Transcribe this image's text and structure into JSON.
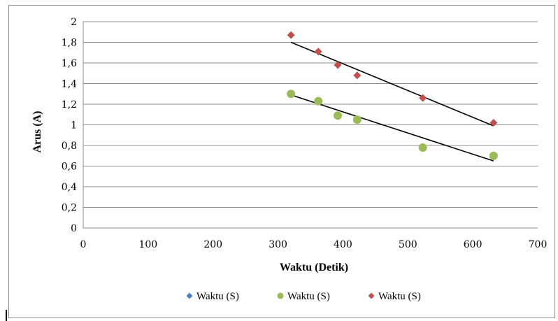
{
  "chart_data": {
    "type": "scatter",
    "title": "",
    "xlabel": "Waktu (Detik)",
    "ylabel": "Arus (A)",
    "xlim": [
      0,
      700
    ],
    "ylim": [
      0,
      2
    ],
    "x_ticks": [
      0,
      100,
      200,
      300,
      400,
      500,
      600,
      700
    ],
    "y_ticks": [
      0,
      0.2,
      0.4,
      0.6,
      0.8,
      1,
      1.2,
      1.4,
      1.6,
      1.8,
      2
    ],
    "y_tick_labels": [
      "0",
      "0,2",
      "0,4",
      "0,6",
      "0,8",
      "1",
      "1,2",
      "1,4",
      "1,6",
      "1,8",
      "2"
    ],
    "grid": "horizontal",
    "legend_position": "bottom",
    "series": [
      {
        "name": "Waktu (S)",
        "color": "#4f81bd",
        "marker": "diamond",
        "x": [],
        "y": []
      },
      {
        "name": "Waktu (S)",
        "color": "#9bbb59",
        "marker": "circle",
        "x": [
          320,
          362,
          392,
          422,
          523,
          632
        ],
        "y": [
          1.3,
          1.23,
          1.09,
          1.05,
          0.78,
          0.7
        ],
        "trendline": {
          "x": [
            320,
            632
          ],
          "y": [
            1.29,
            0.65
          ]
        }
      },
      {
        "name": "Waktu (S)",
        "color": "#c0504d",
        "marker": "diamond",
        "x": [
          320,
          362,
          392,
          422,
          523,
          632
        ],
        "y": [
          1.87,
          1.71,
          1.58,
          1.48,
          1.26,
          1.02
        ],
        "trendline": {
          "x": [
            320,
            632
          ],
          "y": [
            1.8,
            0.99
          ]
        }
      }
    ]
  }
}
